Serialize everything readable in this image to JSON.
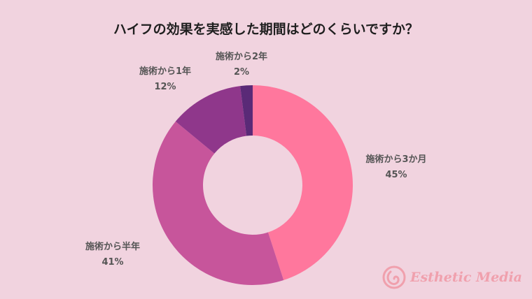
{
  "chart_data": {
    "type": "pie",
    "style": "donut",
    "title": "ハイフの効果を実感した期間はどのくらいですか？",
    "slices": [
      {
        "label": "施術から3か月",
        "value": 45,
        "value_label": "45%",
        "color": "#ff779d"
      },
      {
        "label": "施術から半年",
        "value": 41,
        "value_label": "41%",
        "color": "#c7559b"
      },
      {
        "label": "施術から1年",
        "value": 12,
        "value_label": "12%",
        "color": "#8f378b"
      },
      {
        "label": "施術から2年",
        "value": 2,
        "value_label": "2%",
        "color": "#5a2a77"
      }
    ],
    "start_angle": "12 o'clock",
    "direction": "clockwise",
    "background": "#f1d3df",
    "legend": "none"
  },
  "brand": {
    "name": "Esthetic Media",
    "color": "#f0909d"
  }
}
